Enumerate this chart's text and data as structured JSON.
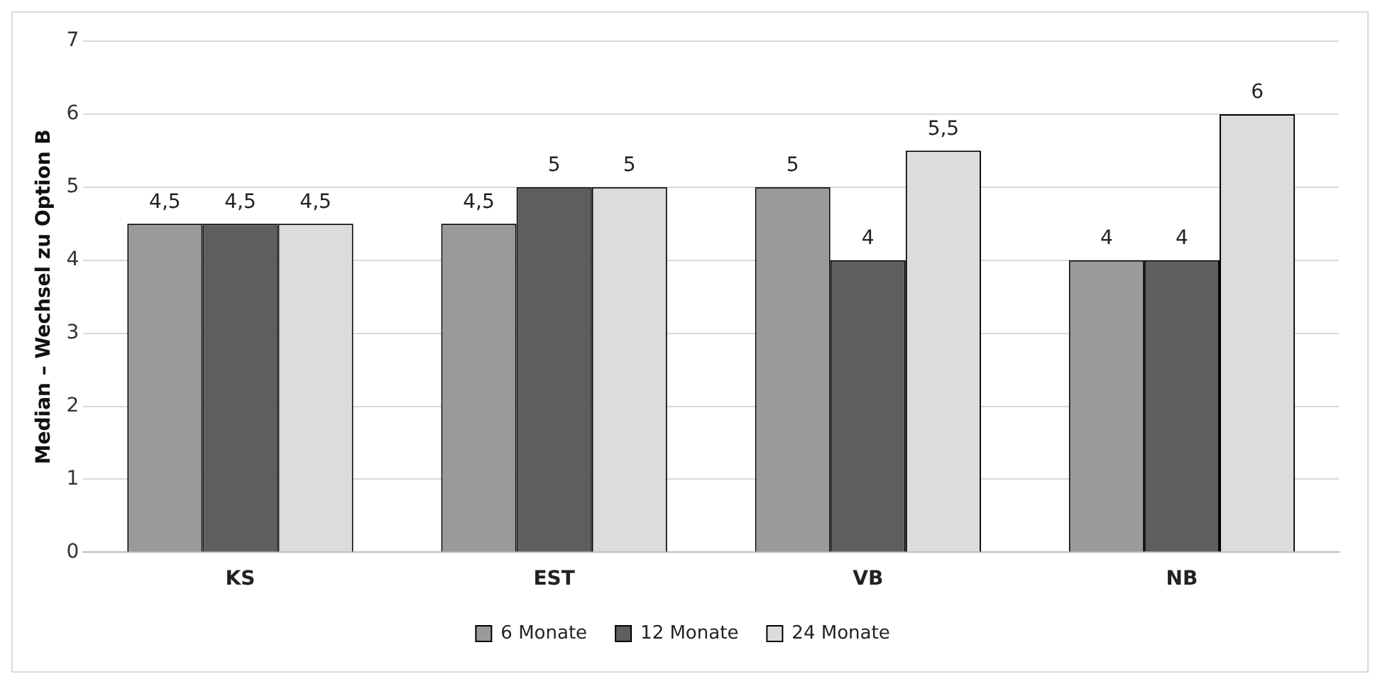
{
  "chart_data": {
    "type": "bar",
    "ylabel": "Median – Wechsel zu Option B",
    "categories": [
      "KS",
      "EST",
      "VB",
      "NB"
    ],
    "series": [
      {
        "name": "6 Monate",
        "color": "#9a9a9a",
        "values": [
          4.5,
          4.5,
          5,
          4
        ],
        "value_labels": [
          "4,5",
          "4,5",
          "5",
          "4"
        ]
      },
      {
        "name": "12 Monate",
        "color": "#5e5e5e",
        "values": [
          4.5,
          5,
          4,
          4
        ],
        "value_labels": [
          "4,5",
          "5",
          "4",
          "4"
        ]
      },
      {
        "name": "24 Monate",
        "color": "#dcdcdc",
        "values": [
          4.5,
          5,
          5.5,
          6
        ],
        "value_labels": [
          "4,5",
          "5",
          "5,5",
          "6"
        ]
      }
    ],
    "ylim": [
      0,
      7
    ],
    "yticks": [
      0,
      1,
      2,
      3,
      4,
      5,
      6,
      7
    ],
    "grid": "y",
    "legend": "bottom"
  }
}
